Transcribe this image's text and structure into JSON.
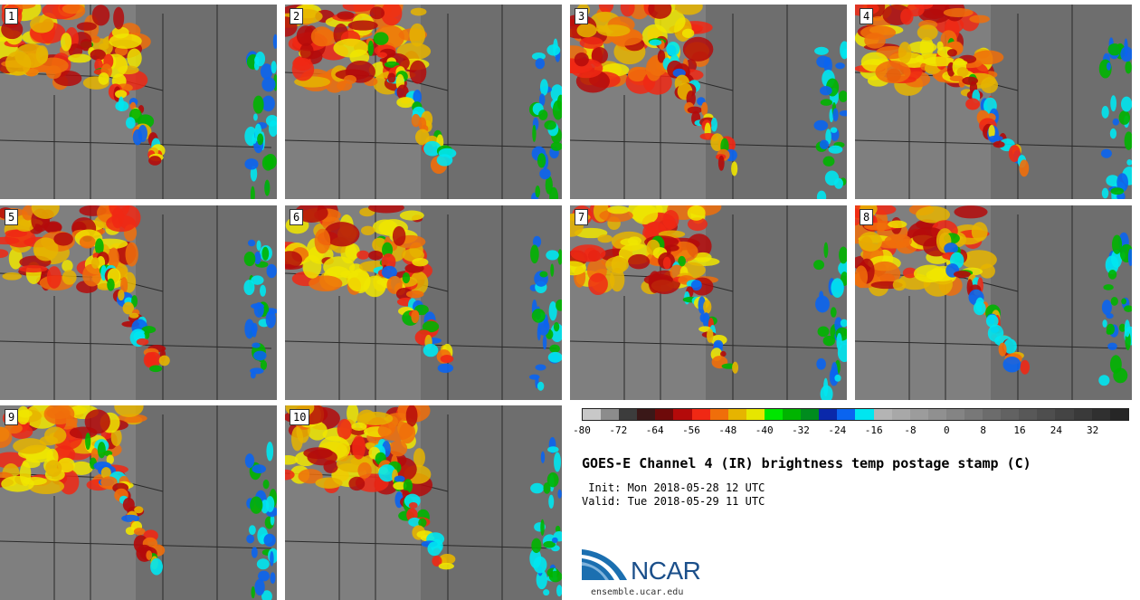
{
  "panels": [
    {
      "label": "1"
    },
    {
      "label": "2"
    },
    {
      "label": "3"
    },
    {
      "label": "4"
    },
    {
      "label": "5"
    },
    {
      "label": "6"
    },
    {
      "label": "7"
    },
    {
      "label": "8"
    },
    {
      "label": "9"
    },
    {
      "label": "10"
    }
  ],
  "colorbar": {
    "colors": [
      "#c8c8c8",
      "#8c8c8c",
      "#3c3c3c",
      "#3a1818",
      "#6e0a0a",
      "#b40a0a",
      "#f02814",
      "#f06e0a",
      "#e6b400",
      "#e6e600",
      "#00e600",
      "#00b400",
      "#008c1e",
      "#0a28aa",
      "#0a64f0",
      "#00e6f0",
      "#b4b4b4",
      "#a8a8a8",
      "#9c9c9c",
      "#909090",
      "#848484",
      "#787878",
      "#6c6c6c",
      "#626262",
      "#585858",
      "#4e4e4e",
      "#444444",
      "#3a3a3a",
      "#303030",
      "#262626"
    ],
    "tick_labels": [
      "-80",
      "-72",
      "-64",
      "-56",
      "-48",
      "-40",
      "-32",
      "-24",
      "-16",
      "-8",
      "0",
      "8",
      "16",
      "24",
      "32"
    ]
  },
  "title": "GOES-E Channel 4 (IR) brightness temp postage stamp (C)",
  "init_text": " Init: Mon 2018-05-28 12 UTC",
  "valid_text": "Valid: Tue 2018-05-29 11 UTC",
  "logo": {
    "text": "NCAR",
    "url": "ensemble.ucar.edu",
    "color": "#1b4f8a"
  }
}
